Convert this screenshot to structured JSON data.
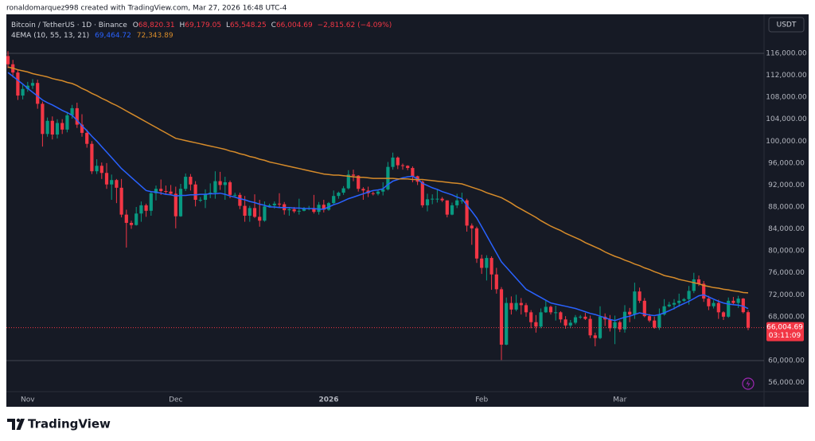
{
  "header": "ronaldomarquez998 created with TradingView.com, Mar 27, 2026 16:48 UTC-4",
  "footer_brand": "TradingView",
  "currency_button": "USDT",
  "legend": {
    "symbol": "Bitcoin / TetherUS · 1D · Binance",
    "o": "O",
    "open": "68,820.31",
    "h": "H",
    "high": "69,179.05",
    "l": "L",
    "low": "65,548.25",
    "c": "C",
    "close": "66,004.69",
    "change": "−2,815.62 (−4.09%)",
    "indicator": "4EMA (10, 55, 13, 21)"
  },
  "chart_data": {
    "type": "candlestick",
    "up_color": "#089981",
    "down_color": "#f23645",
    "open": [
      115500,
      114000,
      112500,
      108300,
      109500,
      110100,
      110600,
      106800,
      101300,
      103700,
      101200,
      103300,
      102100,
      104700,
      106000,
      103000,
      101500,
      99500,
      94500,
      95500,
      94200,
      92100,
      92900,
      91500,
      86600,
      85100,
      84700,
      86800,
      88300,
      87300,
      90500,
      91300,
      90900,
      90800,
      90400,
      86300,
      91300,
      93500,
      92100,
      89300,
      89300,
      90400,
      90600,
      92700,
      92000,
      92500,
      90200,
      90200,
      88200,
      86400,
      87800,
      86200,
      85500,
      88100,
      88300,
      88600,
      88500,
      87400,
      87600,
      87200,
      87300,
      87800,
      87800,
      87100,
      88400,
      87500,
      88700,
      90000,
      90600,
      91400,
      93900,
      93700,
      91300,
      91000,
      90500,
      90400,
      90800,
      91200,
      95300,
      97000,
      95600,
      95500,
      95100,
      93600,
      92600,
      88300,
      89400,
      89500,
      89500,
      89200,
      86600,
      88300,
      89200,
      89200,
      84600,
      84100,
      78600,
      76900,
      78700,
      75700,
      73000,
      62900,
      70500,
      69300,
      70500,
      70100,
      68800,
      67000,
      66200,
      68800,
      69800,
      68800,
      68800,
      67500,
      66400,
      66900,
      67900,
      68000,
      67600,
      64600,
      64100,
      68000,
      67500,
      65900,
      67000,
      65700,
      68900,
      68400,
      72600,
      70900,
      68100,
      67300,
      66000,
      68400,
      69900,
      70200,
      70500,
      70900,
      71200,
      72700,
      74800,
      74000,
      71300,
      69900,
      70500,
      68800,
      68000,
      70900,
      70500,
      71300,
      68820.31
    ],
    "high": [
      116400,
      114800,
      113000,
      110300,
      110800,
      111300,
      111200,
      107200,
      104300,
      104500,
      104000,
      104000,
      105300,
      106600,
      107000,
      104900,
      102100,
      100000,
      96700,
      96100,
      96000,
      93900,
      93100,
      93100,
      87500,
      85500,
      88000,
      89000,
      88600,
      90700,
      91900,
      93000,
      91900,
      92000,
      91700,
      92200,
      94100,
      94000,
      92700,
      89800,
      91200,
      92300,
      94500,
      94400,
      93500,
      92800,
      90600,
      90600,
      90000,
      88200,
      90300,
      89300,
      89000,
      88600,
      89000,
      90500,
      88900,
      88000,
      88000,
      89500,
      88000,
      88200,
      90200,
      88900,
      89300,
      88900,
      91000,
      90800,
      91800,
      94700,
      94800,
      93800,
      91600,
      91700,
      90800,
      91200,
      92500,
      96200,
      97900,
      97200,
      95900,
      95600,
      95400,
      93700,
      92800,
      90400,
      90300,
      91200,
      89800,
      89200,
      88800,
      90400,
      90600,
      89500,
      85000,
      84400,
      79300,
      79200,
      79000,
      76900,
      73400,
      71500,
      71700,
      72000,
      71400,
      70500,
      69200,
      68300,
      69500,
      70900,
      70000,
      70000,
      69000,
      68100,
      67400,
      68300,
      68300,
      68700,
      68200,
      65100,
      69900,
      68600,
      68300,
      68200,
      67300,
      70100,
      69600,
      74200,
      73300,
      71400,
      68500,
      68000,
      69500,
      71200,
      70700,
      71200,
      72200,
      71400,
      73600,
      76000,
      75500,
      74500,
      71800,
      71000,
      71100,
      69000,
      71500,
      71600,
      71800,
      71400,
      69179.05
    ],
    "low": [
      113300,
      111600,
      107500,
      107600,
      109000,
      109500,
      105900,
      99000,
      100800,
      100300,
      100500,
      101300,
      101600,
      104100,
      102400,
      100800,
      98800,
      94000,
      94000,
      93100,
      91300,
      89300,
      88700,
      86100,
      80600,
      84000,
      84600,
      85300,
      86200,
      86400,
      89200,
      90200,
      90300,
      90200,
      84100,
      86200,
      90900,
      91000,
      88100,
      88900,
      87800,
      89600,
      89500,
      91100,
      89300,
      89600,
      89800,
      87600,
      85300,
      85300,
      86000,
      84400,
      85300,
      87900,
      87700,
      87900,
      86600,
      86400,
      86900,
      86600,
      87200,
      87400,
      86800,
      86600,
      87000,
      87300,
      88400,
      89500,
      90200,
      91200,
      92700,
      90800,
      89300,
      89800,
      90100,
      90100,
      90100,
      91000,
      94800,
      94900,
      94800,
      94700,
      92500,
      92000,
      87900,
      87200,
      88500,
      88800,
      88900,
      86100,
      86500,
      87800,
      88600,
      83500,
      81100,
      77800,
      75800,
      74600,
      72900,
      72200,
      60100,
      62800,
      68400,
      69000,
      68400,
      68000,
      65900,
      65100,
      65900,
      68700,
      68400,
      67300,
      66900,
      65800,
      65900,
      66600,
      67600,
      67400,
      64100,
      62600,
      63900,
      66300,
      65300,
      63000,
      65200,
      65100,
      67000,
      67600,
      70500,
      67900,
      67000,
      65800,
      65600,
      68200,
      69700,
      69300,
      69800,
      70700,
      70200,
      72300,
      73600,
      70700,
      69200,
      69500,
      67600,
      67400,
      67800,
      70100,
      69600,
      68600,
      65548.25
    ],
    "close": [
      114000,
      112500,
      108300,
      109500,
      110100,
      110600,
      106800,
      101300,
      103700,
      101200,
      103300,
      102100,
      104700,
      106000,
      103000,
      101500,
      99500,
      94500,
      95500,
      94200,
      92100,
      92900,
      91500,
      86600,
      85100,
      84700,
      86800,
      88300,
      87300,
      90500,
      91300,
      90900,
      90800,
      90400,
      86300,
      91300,
      93500,
      92100,
      89300,
      89300,
      90400,
      90600,
      92700,
      92000,
      92500,
      90200,
      90200,
      88200,
      86400,
      87800,
      86200,
      85500,
      88100,
      88300,
      88600,
      88500,
      87400,
      87600,
      87200,
      87300,
      87800,
      87800,
      87100,
      88400,
      87500,
      88700,
      90000,
      90600,
      91400,
      93900,
      93700,
      91300,
      91000,
      90500,
      90400,
      90800,
      91200,
      95300,
      97000,
      95600,
      95500,
      95100,
      93600,
      92600,
      88300,
      89400,
      89500,
      89500,
      89200,
      86600,
      88300,
      89200,
      89200,
      84600,
      84100,
      78600,
      76900,
      78700,
      75700,
      73000,
      62900,
      70500,
      69300,
      70500,
      70100,
      68800,
      67000,
      66200,
      68800,
      69800,
      68800,
      68800,
      67500,
      66400,
      66900,
      67900,
      68000,
      67600,
      64600,
      64100,
      68000,
      67500,
      65900,
      67000,
      65700,
      68900,
      68400,
      72600,
      70900,
      68100,
      67300,
      66000,
      68400,
      69900,
      70200,
      70500,
      70900,
      71200,
      72700,
      74800,
      74000,
      71300,
      69900,
      70500,
      68800,
      68000,
      70900,
      70500,
      71300,
      68820.31,
      66004.69
    ],
    "series": [
      {
        "color": "#2962ff",
        "last_label": "69,464.72",
        "values": [
          112500,
          111800,
          111100,
          110400,
          109600,
          108900,
          108200,
          107500,
          107000,
          106600,
          106100,
          105600,
          105200,
          104700,
          103800,
          102800,
          101900,
          100900,
          100000,
          99000,
          98000,
          97000,
          96000,
          95000,
          94200,
          93400,
          92600,
          91800,
          91000,
          90800,
          90700,
          90500,
          90300,
          90200,
          90000,
          90100,
          90100,
          90200,
          90200,
          90300,
          90300,
          90400,
          90400,
          90500,
          90300,
          90000,
          89800,
          89500,
          89300,
          89000,
          88800,
          88500,
          88300,
          88000,
          88000,
          87900,
          87900,
          87900,
          87800,
          87800,
          87700,
          87700,
          87700,
          87600,
          87600,
          88000,
          88400,
          88700,
          89100,
          89500,
          89800,
          90100,
          90400,
          90700,
          91000,
          91100,
          91300,
          92100,
          92700,
          93000,
          93300,
          93500,
          93600,
          93100,
          92300,
          91900,
          91500,
          91200,
          90800,
          90500,
          90200,
          89800,
          89500,
          88300,
          87200,
          86000,
          84400,
          82800,
          81200,
          79600,
          78000,
          77000,
          76000,
          75000,
          74000,
          73000,
          72500,
          72000,
          71500,
          71000,
          70500,
          70300,
          70100,
          69900,
          69700,
          69500,
          69200,
          68900,
          68600,
          68400,
          68100,
          67800,
          67500,
          67300,
          67600,
          67900,
          68100,
          68400,
          68700,
          68500,
          68300,
          68200,
          68400,
          68700,
          69100,
          69500,
          70000,
          70400,
          70800,
          71300,
          71800,
          72000,
          71600,
          71200,
          70800,
          70500,
          70300,
          70200,
          70100,
          69900,
          69464.72
        ]
      },
      {
        "color": "#d68b2a",
        "last_label": "72,343.89",
        "values": [
          113500,
          113300,
          113000,
          112800,
          112600,
          112300,
          112100,
          111900,
          111700,
          111400,
          111200,
          111000,
          110700,
          110500,
          110100,
          109600,
          109200,
          108700,
          108300,
          107800,
          107400,
          106900,
          106500,
          106000,
          105500,
          105000,
          104500,
          104000,
          103500,
          103000,
          102500,
          102000,
          101500,
          101000,
          100500,
          100300,
          100100,
          99900,
          99700,
          99500,
          99300,
          99100,
          98900,
          98700,
          98500,
          98200,
          98000,
          97700,
          97500,
          97200,
          97000,
          96700,
          96500,
          96200,
          96000,
          95800,
          95600,
          95400,
          95200,
          95000,
          94800,
          94600,
          94400,
          94200,
          94000,
          93900,
          93800,
          93800,
          93700,
          93600,
          93500,
          93400,
          93400,
          93300,
          93200,
          93200,
          93200,
          93200,
          93200,
          93100,
          93100,
          93100,
          93000,
          93000,
          93000,
          92900,
          92800,
          92700,
          92600,
          92500,
          92400,
          92300,
          92200,
          91900,
          91600,
          91300,
          91000,
          90600,
          90300,
          90000,
          89700,
          89200,
          88700,
          88100,
          87600,
          87100,
          86600,
          86100,
          85500,
          85000,
          84500,
          84100,
          83700,
          83200,
          82800,
          82400,
          82000,
          81500,
          81100,
          80700,
          80300,
          79800,
          79400,
          79000,
          78700,
          78300,
          78000,
          77600,
          77300,
          76900,
          76600,
          76200,
          75900,
          75500,
          75300,
          75100,
          74800,
          74600,
          74400,
          74200,
          74000,
          73700,
          73500,
          73300,
          73200,
          73000,
          72900,
          72700,
          72600,
          72400,
          72343.89
        ]
      }
    ],
    "ylim": [
      54630,
      122960
    ],
    "yticks": [
      {
        "value": 116000,
        "label": "116,000.00"
      },
      {
        "value": 112000,
        "label": "112,000.00"
      },
      {
        "value": 108000,
        "label": "108,000.00"
      },
      {
        "value": 104000,
        "label": "104,000.00"
      },
      {
        "value": 100000,
        "label": "100,000.00"
      },
      {
        "value": 96000,
        "label": "96,000.00"
      },
      {
        "value": 92000,
        "label": "92,000.00"
      },
      {
        "value": 88000,
        "label": "88,000.00"
      },
      {
        "value": 84000,
        "label": "84,000.00"
      },
      {
        "value": 80000,
        "label": "80,000.00"
      },
      {
        "value": 76000,
        "label": "76,000.00"
      },
      {
        "value": 72000,
        "label": "72,000.00"
      },
      {
        "value": 68000,
        "label": "68,000.00"
      },
      {
        "value": 60000,
        "label": "60,000.00"
      },
      {
        "value": 56000,
        "label": "56,000.00"
      }
    ],
    "xticks": [
      {
        "value": 4,
        "label": "Nov"
      },
      {
        "value": 34,
        "label": "Dec"
      },
      {
        "value": 65,
        "label": "2026"
      },
      {
        "value": 96,
        "label": "Feb"
      },
      {
        "value": 124,
        "label": "Mar"
      }
    ],
    "bold_xtick": "2026",
    "horizontal_lines": [
      116000,
      60000
    ],
    "grid": false,
    "last_price_label": "66,004.69",
    "countdown": "03:11:09"
  }
}
